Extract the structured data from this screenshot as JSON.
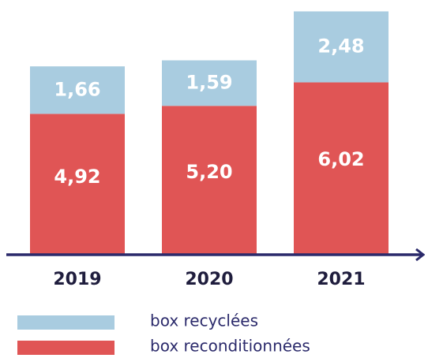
{
  "chart_data": {
    "type": "stacked-bar",
    "categories": [
      "2019",
      "2020",
      "2021"
    ],
    "series": [
      {
        "name": "box reconditionnées",
        "color": "#e05555",
        "values": [
          4.92,
          5.2,
          6.02
        ],
        "value_labels": [
          "4,92",
          "5,20",
          "6,02"
        ]
      },
      {
        "name": "box recyclées",
        "color": "#a9cce0",
        "values": [
          1.66,
          1.59,
          2.48
        ],
        "value_labels": [
          "1,66",
          "1,59",
          "2,48"
        ]
      }
    ]
  }
}
